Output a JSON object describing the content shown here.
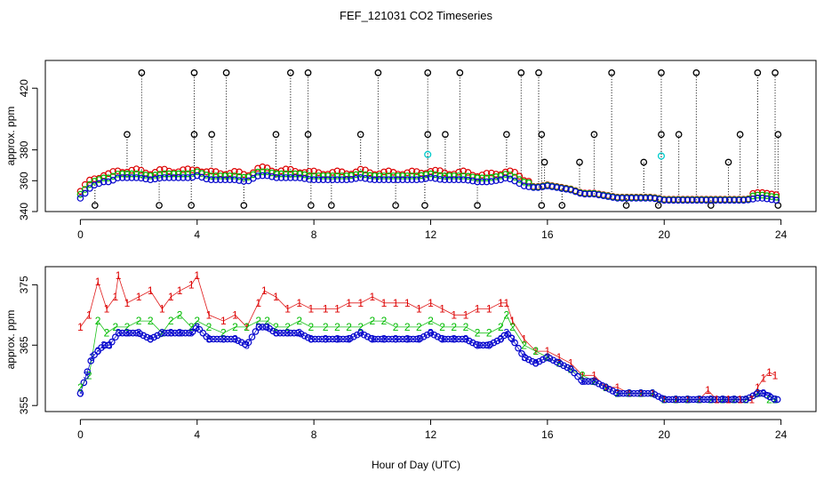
{
  "title": "FEF_121031  CO2 Timeseries",
  "x_label_shared": "Hour of Day (UTC)",
  "colors": {
    "s1": "#dd0000",
    "s2": "#00bb00",
    "s3": "#0000cc",
    "cyan": "#00cccc",
    "black": "#000000"
  },
  "chart_data": [
    {
      "type": "scatter",
      "title": "",
      "xlabel": "",
      "ylabel": "approx. ppm",
      "xlim": [
        -1.2,
        25.2
      ],
      "ylim": [
        340,
        438
      ],
      "xticks": [
        0,
        4,
        8,
        12,
        16,
        20,
        24
      ],
      "xtick_labels": [
        "0",
        "4",
        "8",
        "12",
        "16",
        "20",
        "24"
      ],
      "yticks": [
        340,
        360,
        380,
        420
      ],
      "ytick_labels": [
        "340",
        "360",
        "380",
        "420"
      ],
      "spikes": {
        "high_value": 430,
        "high_x": [
          2.1,
          3.9,
          5.0,
          7.2,
          7.8,
          10.2,
          11.9,
          13.0,
          15.1,
          15.7,
          18.2,
          19.9,
          21.1,
          23.2,
          23.8
        ],
        "mid_value": 390,
        "mid_x": [
          1.6,
          3.9,
          4.5,
          6.7,
          7.8,
          9.6,
          11.9,
          12.5,
          14.6,
          15.8,
          17.6,
          19.9,
          20.5,
          22.6,
          23.9
        ],
        "low_value": 372,
        "low_x": [
          15.9,
          17.1,
          19.3,
          22.2
        ],
        "bottom_value": 344,
        "bottom_x": [
          0.5,
          2.7,
          3.8,
          5.6,
          7.9,
          8.6,
          10.8,
          11.8,
          13.6,
          15.8,
          16.5,
          18.7,
          19.8,
          21.6,
          23.9
        ]
      },
      "cyan_points": [
        {
          "x": 11.9,
          "y": 377
        },
        {
          "x": 19.9,
          "y": 376
        }
      ]
    },
    {
      "type": "scatter",
      "title": "",
      "xlabel": "Hour of Day (UTC)",
      "ylabel": "approx. ppm",
      "xlim": [
        -1.2,
        25.2
      ],
      "ylim": [
        354,
        378
      ],
      "xticks": [
        0,
        4,
        8,
        12,
        16,
        20,
        24
      ],
      "xtick_labels": [
        "0",
        "4",
        "8",
        "12",
        "16",
        "20",
        "24"
      ],
      "yticks": [
        355,
        365,
        375
      ],
      "ytick_labels": [
        "355",
        "365",
        "375"
      ],
      "series": [
        {
          "name": "1",
          "symbol": "1",
          "x": [
            0.0,
            0.3,
            0.6,
            0.9,
            1.2,
            1.3,
            1.6,
            2.0,
            2.4,
            2.8,
            3.1,
            3.4,
            3.8,
            4.0,
            4.4,
            4.9,
            5.3,
            5.7,
            6.1,
            6.3,
            6.7,
            7.1,
            7.5,
            7.9,
            8.4,
            8.8,
            9.2,
            9.6,
            10.0,
            10.4,
            10.8,
            11.2,
            11.6,
            12.0,
            12.4,
            12.8,
            13.2,
            13.6,
            14.0,
            14.4,
            14.6,
            14.8,
            15.2,
            15.6,
            16.0,
            16.4,
            16.8,
            17.2,
            17.6,
            18.0,
            18.4,
            18.8,
            19.2,
            19.6,
            20.0,
            20.4,
            20.8,
            21.2,
            21.5,
            21.8,
            22.2,
            22.6,
            23.0,
            23.2,
            23.4,
            23.6,
            23.8
          ],
          "y": [
            368,
            370,
            375.5,
            371,
            373,
            376.5,
            372,
            373,
            374,
            371,
            373,
            374,
            375,
            376.5,
            370,
            369,
            370,
            368,
            372,
            374,
            373,
            371,
            372,
            371,
            371,
            371,
            372,
            372,
            373,
            372,
            372,
            372,
            371,
            372,
            371,
            370,
            370,
            371,
            371,
            372,
            372,
            369,
            366,
            364,
            364,
            363,
            362,
            360,
            360,
            358,
            358,
            357,
            357,
            357,
            356,
            356,
            356,
            356,
            357.5,
            356,
            356,
            356,
            356,
            358,
            359.5,
            360.5,
            360
          ]
        },
        {
          "name": "2",
          "symbol": "2",
          "x": [
            0.0,
            0.3,
            0.6,
            0.9,
            1.2,
            1.6,
            2.0,
            2.4,
            2.8,
            3.1,
            3.4,
            3.8,
            4.0,
            4.4,
            4.9,
            5.3,
            5.7,
            6.1,
            6.4,
            6.7,
            7.1,
            7.5,
            7.9,
            8.4,
            8.8,
            9.2,
            9.6,
            10.0,
            10.4,
            10.8,
            11.2,
            11.6,
            12.0,
            12.4,
            12.8,
            13.2,
            13.6,
            14.0,
            14.4,
            14.6,
            14.8,
            15.2,
            15.6,
            16.0,
            16.4,
            16.8,
            17.2,
            17.6,
            18.0,
            18.4,
            18.8,
            19.2,
            19.6,
            20.0,
            20.4,
            20.8,
            21.2,
            21.6,
            22.0,
            22.4,
            22.8,
            23.2,
            23.6,
            23.8
          ],
          "y": [
            358,
            360,
            369,
            367,
            368,
            368,
            369,
            369,
            367,
            369,
            370,
            368,
            369,
            368,
            367,
            368,
            368,
            369,
            369,
            368,
            368,
            369,
            368,
            368,
            368,
            368,
            368,
            369,
            369,
            368,
            368,
            368,
            369,
            368,
            368,
            368,
            367,
            367,
            368,
            370,
            368,
            365,
            364,
            363,
            362,
            361,
            360,
            359,
            358,
            357,
            357,
            357,
            357,
            356,
            356,
            356,
            356,
            356,
            356,
            356,
            356,
            357,
            356,
            356
          ]
        },
        {
          "name": "3",
          "symbol": "3",
          "x": [
            0.0,
            0.2,
            0.4,
            0.6,
            0.8,
            1.0,
            1.3,
            1.6,
            2.0,
            2.4,
            2.8,
            3.1,
            3.4,
            3.8,
            4.0,
            4.4,
            4.9,
            5.3,
            5.7,
            6.1,
            6.4,
            6.7,
            7.1,
            7.5,
            7.9,
            8.4,
            8.8,
            9.2,
            9.6,
            10.0,
            10.4,
            10.8,
            11.2,
            11.6,
            12.0,
            12.4,
            12.8,
            13.2,
            13.6,
            14.0,
            14.4,
            14.6,
            14.8,
            15.2,
            15.6,
            16.0,
            16.4,
            16.8,
            17.2,
            17.6,
            18.0,
            18.4,
            18.8,
            19.2,
            19.6,
            20.0,
            20.4,
            20.8,
            21.2,
            21.6,
            22.0,
            22.4,
            22.8,
            23.2,
            23.4,
            23.6,
            23.8
          ],
          "y": [
            357,
            360,
            363,
            364,
            365,
            365,
            367,
            367,
            367,
            366,
            367,
            367,
            367,
            367,
            368,
            366,
            366,
            366,
            365,
            368,
            368,
            367,
            367,
            367,
            366,
            366,
            366,
            366,
            367,
            366,
            366,
            366,
            366,
            366,
            367,
            366,
            366,
            366,
            365,
            365,
            366,
            367,
            366,
            363,
            362,
            363,
            362,
            361,
            359,
            359,
            358,
            357,
            357,
            357,
            357,
            356,
            356,
            356,
            356,
            356,
            356,
            356,
            356,
            357,
            357,
            356.5,
            356
          ]
        }
      ]
    }
  ]
}
